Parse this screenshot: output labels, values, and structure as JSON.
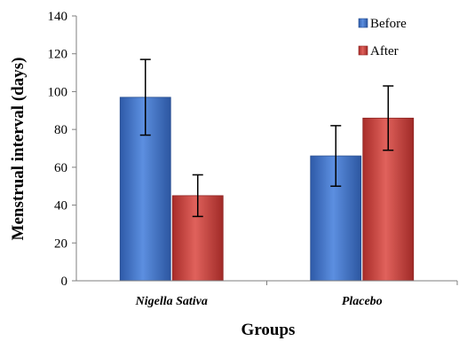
{
  "chart_data": {
    "type": "bar",
    "categories": [
      "Nigella Sativa",
      "Placebo"
    ],
    "series": [
      {
        "name": "Before",
        "values": [
          97,
          66
        ],
        "errors": [
          20,
          16
        ],
        "color": "#3b6fc4"
      },
      {
        "name": "After",
        "values": [
          45,
          86
        ],
        "errors": [
          11,
          17
        ],
        "color": "#c53a36"
      }
    ],
    "title": "",
    "xlabel": "Groups",
    "ylabel": "Menstrual interval (days)",
    "ylim": [
      0,
      140
    ],
    "yticks": [
      "0",
      "20",
      "40",
      "60",
      "80",
      "100",
      "120",
      "140"
    ],
    "legend_position": "top-right",
    "grid": false
  }
}
